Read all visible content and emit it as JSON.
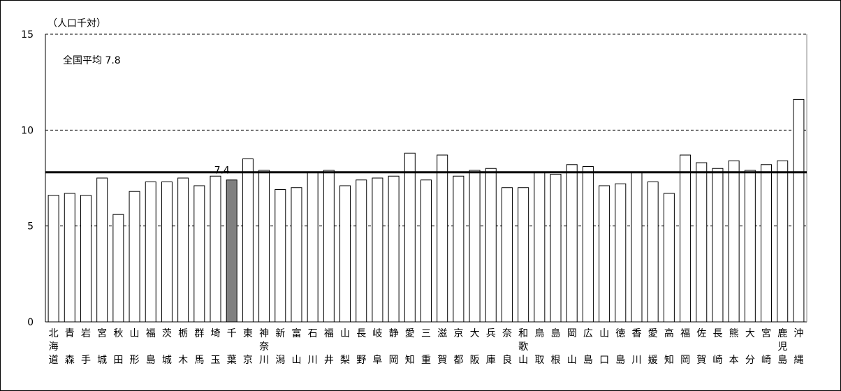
{
  "chart_data": {
    "type": "bar",
    "unit_label": "（人口千対）",
    "average_note": "全国平均 7.8",
    "average_value": 7.8,
    "highlight_label": "7.4",
    "highlight_index": 11,
    "ylim": [
      0,
      15
    ],
    "yticks": [
      0,
      5,
      10,
      15
    ],
    "gridlines": [
      5,
      10,
      15
    ],
    "bar_fill": "#ffffff",
    "highlight_fill": "#808080",
    "categories": [
      "北海道",
      "青森",
      "岩手",
      "宮城",
      "秋田",
      "山形",
      "福島",
      "茨城",
      "栃木",
      "群馬",
      "埼玉",
      "千葉",
      "東京",
      "神奈川",
      "新潟",
      "富山",
      "石川",
      "福井",
      "山梨",
      "長野",
      "岐阜",
      "静岡",
      "愛知",
      "三重",
      "滋賀",
      "京都",
      "大阪",
      "兵庫",
      "奈良",
      "和歌山",
      "鳥取",
      "島根",
      "岡山",
      "広島",
      "山口",
      "徳島",
      "香川",
      "愛媛",
      "高知",
      "福岡",
      "佐賀",
      "長崎",
      "熊本",
      "大分",
      "宮崎",
      "鹿児島",
      "沖縄"
    ],
    "values": [
      6.6,
      6.7,
      6.6,
      7.5,
      5.6,
      6.8,
      7.3,
      7.3,
      7.5,
      7.1,
      7.6,
      7.4,
      8.5,
      7.9,
      6.9,
      7.0,
      7.8,
      7.9,
      7.1,
      7.4,
      7.5,
      7.6,
      8.8,
      7.4,
      8.7,
      7.6,
      7.9,
      8.0,
      7.0,
      7.0,
      7.8,
      7.7,
      8.2,
      8.1,
      7.1,
      7.2,
      7.8,
      7.3,
      6.7,
      8.7,
      8.3,
      8.0,
      8.4,
      7.9,
      8.2,
      8.4,
      11.6
    ]
  }
}
